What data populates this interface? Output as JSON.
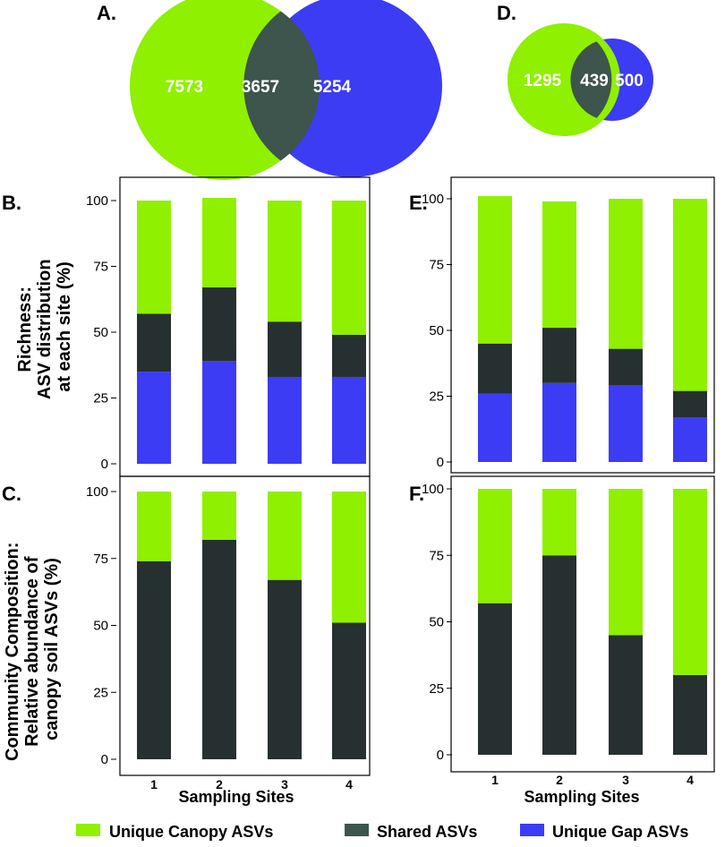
{
  "colors": {
    "canopy": "#8ff000",
    "shared": "#273030",
    "gap": "#3c3cf5",
    "overlap": "#3d554c"
  },
  "venn": [
    {
      "panel": "A.",
      "left_value": "7573",
      "shared_value": "3657",
      "right_value": "5254"
    },
    {
      "panel": "D.",
      "left_value": "1295",
      "shared_value": "439",
      "right_value": "500"
    }
  ],
  "y_labels": {
    "richness": [
      "Richness:",
      "ASV distribution",
      "at each site (%)"
    ],
    "composition": [
      "Community Composition:",
      "Relative abundance of",
      "canopy soil ASVs (%)"
    ]
  },
  "x_axis_title": "Sampling Sites",
  "legend": [
    {
      "label": "Unique Canopy ASVs",
      "color_key": "canopy"
    },
    {
      "label": "Shared ASVs",
      "color_key": "shared"
    },
    {
      "label": "Unique Gap ASVs",
      "color_key": "gap"
    }
  ],
  "chart_data": [
    {
      "panel": "B.",
      "type": "bar",
      "stacked": true,
      "categories": [
        "1",
        "2",
        "3",
        "4"
      ],
      "yticks": [
        "0",
        "25",
        "50",
        "75",
        "100"
      ],
      "ylim": [
        0,
        100
      ],
      "ylabel": "Richness: ASV distribution at each site (%)",
      "xlabel": "",
      "series": [
        {
          "name": "Unique Gap ASVs",
          "color_key": "gap",
          "values": [
            35,
            39,
            33,
            33
          ]
        },
        {
          "name": "Shared ASVs",
          "color_key": "shared",
          "values": [
            22,
            28,
            21,
            16
          ]
        },
        {
          "name": "Unique Canopy ASVs",
          "color_key": "canopy",
          "values": [
            43,
            34,
            46,
            51
          ]
        }
      ]
    },
    {
      "panel": "E.",
      "type": "bar",
      "stacked": true,
      "categories": [
        "1",
        "2",
        "3",
        "4"
      ],
      "yticks": [
        "0",
        "25",
        "50",
        "75",
        "100"
      ],
      "ylim": [
        0,
        100
      ],
      "ylabel": "",
      "xlabel": "",
      "series": [
        {
          "name": "Unique Gap ASVs",
          "color_key": "gap",
          "values": [
            26,
            30,
            29,
            17
          ]
        },
        {
          "name": "Shared ASVs",
          "color_key": "shared",
          "values": [
            19,
            21,
            14,
            10
          ]
        },
        {
          "name": "Unique Canopy ASVs",
          "color_key": "canopy",
          "values": [
            56,
            48,
            57,
            73
          ]
        }
      ]
    },
    {
      "panel": "C.",
      "type": "bar",
      "stacked": true,
      "categories": [
        "1",
        "2",
        "3",
        "4"
      ],
      "yticks": [
        "0",
        "25",
        "50",
        "75",
        "100"
      ],
      "ylim": [
        0,
        100
      ],
      "ylabel": "Community Composition: Relative abundance of canopy soil ASVs (%)",
      "xlabel": "Sampling Sites",
      "series": [
        {
          "name": "Shared ASVs",
          "color_key": "shared",
          "values": [
            74,
            82,
            67,
            51
          ]
        },
        {
          "name": "Unique Canopy ASVs",
          "color_key": "canopy",
          "values": [
            26,
            18,
            33,
            49
          ]
        }
      ]
    },
    {
      "panel": "F.",
      "type": "bar",
      "stacked": true,
      "categories": [
        "1",
        "2",
        "3",
        "4"
      ],
      "yticks": [
        "0",
        "25",
        "50",
        "75",
        "100"
      ],
      "ylim": [
        0,
        100
      ],
      "ylabel": "",
      "xlabel": "Sampling Sites",
      "series": [
        {
          "name": "Shared ASVs",
          "color_key": "shared",
          "values": [
            57,
            75,
            45,
            30
          ]
        },
        {
          "name": "Unique Canopy ASVs",
          "color_key": "canopy",
          "values": [
            43,
            25,
            55,
            70
          ]
        }
      ]
    }
  ]
}
